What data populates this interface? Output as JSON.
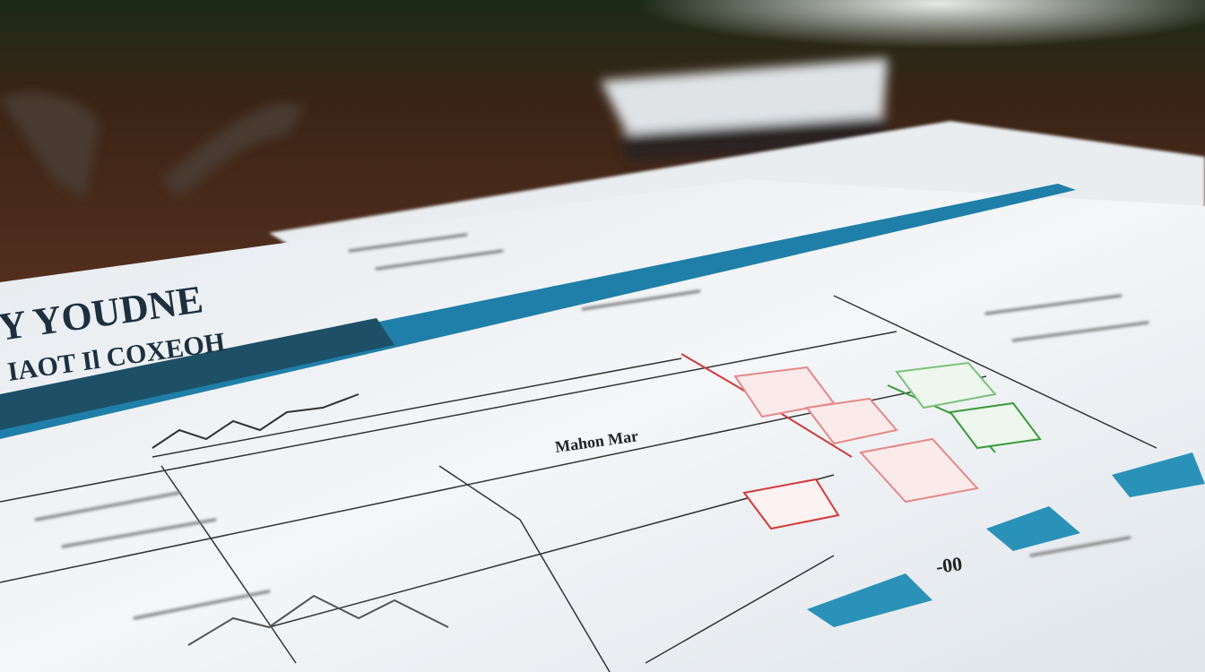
{
  "document": {
    "title_fragment": "Y YOUDNE",
    "subtitle_fragment": "IAOT Il COXEOH",
    "header_label": "Mahon Mar",
    "annotation": "-00"
  },
  "colors": {
    "paper": "#f1f4f6",
    "accent_blue": "#1f7fa8",
    "teal_box": "#2a92b8",
    "red_line": "#d23a3a",
    "green_line": "#3a9a3a",
    "wood": "#3b2214"
  }
}
